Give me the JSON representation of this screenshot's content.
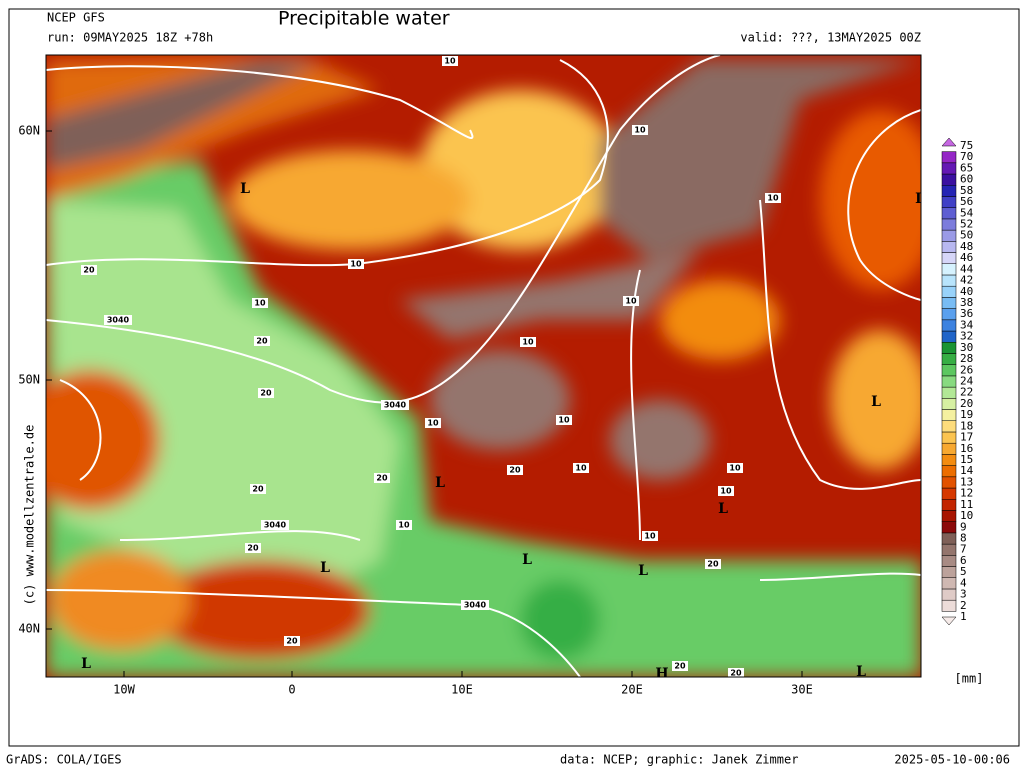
{
  "header": {
    "model": "NCEP GFS",
    "title": "Precipitable water",
    "run": "run: 09MAY2025 18Z +78h",
    "valid": "valid: ???, 13MAY2025 00Z"
  },
  "map": {
    "lat_labels": [
      "60N",
      "50N",
      "40N"
    ],
    "lon_labels": [
      "10W",
      "0",
      "10E",
      "20E",
      "30E"
    ],
    "watermark": "(c) www.modellzentrale.de",
    "contour_labels": [
      "10",
      "10",
      "10",
      "10",
      "10",
      "10",
      "10",
      "10",
      "10",
      "10",
      "10",
      "10",
      "10",
      "10",
      "20",
      "20",
      "20",
      "20",
      "20",
      "20",
      "20",
      "20",
      "20",
      "20",
      "20",
      "3040",
      "3040",
      "3040",
      "3040",
      "L",
      "L",
      "L",
      "L",
      "L",
      "L",
      "L",
      "L",
      "L",
      "L",
      "H"
    ]
  },
  "colorbar": {
    "unit": "[mm]",
    "levels": [
      "1",
      "2",
      "3",
      "4",
      "5",
      "6",
      "7",
      "8",
      "9",
      "10",
      "11",
      "12",
      "13",
      "14",
      "15",
      "16",
      "17",
      "18",
      "19",
      "20",
      "22",
      "24",
      "26",
      "28",
      "30",
      "32",
      "34",
      "36",
      "38",
      "40",
      "42",
      "44",
      "46",
      "48",
      "50",
      "52",
      "54",
      "56",
      "58",
      "60",
      "65",
      "70",
      "75"
    ],
    "colors": [
      "#f6ebe9",
      "#ecdcd9",
      "#dfcbc7",
      "#cfb8b2",
      "#bca29b",
      "#a88b84",
      "#94756d",
      "#7f6058",
      "#8c0a0a",
      "#a81400",
      "#c22400",
      "#d63800",
      "#e25200",
      "#ec6e00",
      "#f38c10",
      "#f7a830",
      "#fbc450",
      "#fddc7c",
      "#f4f0a0",
      "#d6f0a2",
      "#b2e896",
      "#88da80",
      "#5cc760",
      "#36ae44",
      "#1a9434",
      "#2064c8",
      "#3c82e0",
      "#5aa0ee",
      "#78bcf4",
      "#98d2fa",
      "#b8e4fc",
      "#d6f2fe",
      "#d6d6f8",
      "#b8b8f0",
      "#9a9ae6",
      "#7c7cdc",
      "#5e5ed2",
      "#4040c6",
      "#2424b4",
      "#3a10a0",
      "#6418b4",
      "#9426c6",
      "#c668e2"
    ]
  },
  "footer": {
    "software": "GrADS: COLA/IGES",
    "credit": "data: NCEP; graphic: Janek Zimmer",
    "timestamp": "2025-05-10-00:06"
  }
}
